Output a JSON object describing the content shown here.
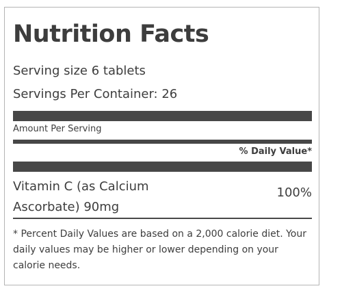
{
  "label": {
    "title": "Nutrition Facts",
    "serving_size": "Serving size 6 tablets",
    "servings_per_container": "Servings Per Container: 26",
    "amount_per_serving": "Amount Per Serving",
    "daily_value_header": "% Daily Value*",
    "nutrients": [
      {
        "name": "Vitamin C (as Calcium Ascorbate) 90mg",
        "daily_value": "100%"
      }
    ],
    "footnote": "* Percent Daily Values are based on a 2,000 calorie diet. Your daily values may be higher or lower depending on your calorie needs."
  },
  "colors": {
    "text": "#3d3d3d",
    "bars": "#474747",
    "border": "#b4b4b4"
  }
}
